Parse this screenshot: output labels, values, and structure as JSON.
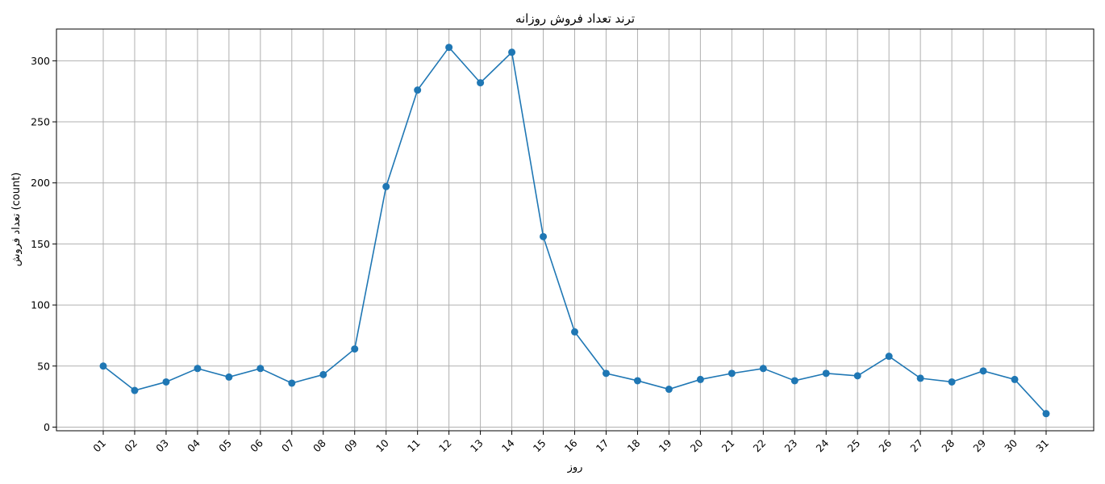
{
  "chart_data": {
    "type": "line",
    "title": "ترند تعداد فروش روزانه",
    "xlabel": "روز",
    "ylabel": "تعداد فروش (count)",
    "categories": [
      "01",
      "02",
      "03",
      "04",
      "05",
      "06",
      "07",
      "08",
      "09",
      "10",
      "11",
      "12",
      "13",
      "14",
      "15",
      "16",
      "17",
      "18",
      "19",
      "20",
      "21",
      "22",
      "23",
      "24",
      "25",
      "26",
      "27",
      "28",
      "29",
      "30",
      "31"
    ],
    "series": [
      {
        "values": [
          50,
          30,
          37,
          48,
          41,
          48,
          36,
          43,
          64,
          197,
          276,
          311,
          282,
          307,
          156,
          78,
          44,
          38,
          31,
          39,
          44,
          48,
          38,
          44,
          42,
          58,
          40,
          37,
          46,
          39,
          11
        ],
        "color": "#1f77b4",
        "marker": "circle"
      }
    ],
    "ylim": [
      -3,
      326
    ],
    "yticks": [
      0,
      50,
      100,
      150,
      200,
      250,
      300
    ],
    "grid": true,
    "legend": "none"
  }
}
